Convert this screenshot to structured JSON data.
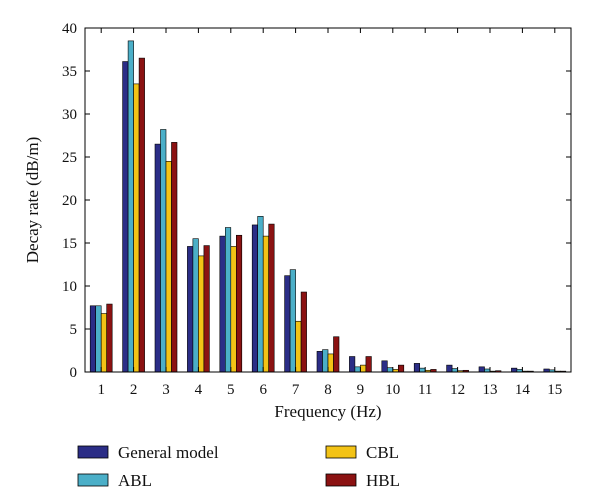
{
  "chart_data": {
    "type": "bar",
    "title": "",
    "xlabel": "Frequency (Hz)",
    "ylabel": "Decay rate (dB/m)",
    "ylim": [
      0,
      40
    ],
    "yticks": [
      0,
      5,
      10,
      15,
      20,
      25,
      30,
      35,
      40
    ],
    "grid": false,
    "legend_position": "bottom",
    "categories": [
      "1",
      "2",
      "3",
      "4",
      "5",
      "6",
      "7",
      "8",
      "9",
      "10",
      "11",
      "12",
      "13",
      "14",
      "15"
    ],
    "series": [
      {
        "name": "General model",
        "color": "#2b2d86",
        "values": [
          7.7,
          36.1,
          26.5,
          14.6,
          15.8,
          17.1,
          11.2,
          2.4,
          1.8,
          1.3,
          1.0,
          0.8,
          0.6,
          0.45,
          0.35
        ]
      },
      {
        "name": "ABL",
        "color": "#4bafc8",
        "values": [
          7.7,
          38.5,
          28.2,
          15.5,
          16.8,
          18.1,
          11.9,
          2.6,
          0.6,
          0.5,
          0.45,
          0.4,
          0.35,
          0.3,
          0.25
        ]
      },
      {
        "name": "CBL",
        "color": "#f3c316",
        "values": [
          6.8,
          33.5,
          24.5,
          13.5,
          14.6,
          15.8,
          5.9,
          2.1,
          0.8,
          0.3,
          0.2,
          0.15,
          0.1,
          0.1,
          0.1
        ]
      },
      {
        "name": "HBL",
        "color": "#8b1212",
        "values": [
          7.9,
          36.5,
          26.7,
          14.7,
          15.9,
          17.2,
          9.3,
          4.1,
          1.8,
          0.8,
          0.3,
          0.2,
          0.15,
          0.1,
          0.1
        ]
      }
    ]
  }
}
